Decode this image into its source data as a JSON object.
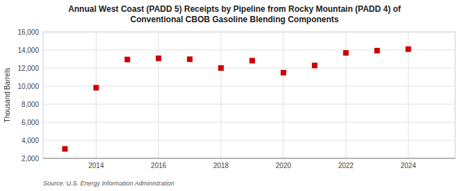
{
  "chart_data": {
    "type": "scatter",
    "title": "Annual West Coast (PADD 5) Receipts by Pipeline from Rocky Mountain (PADD 4) of\nConventional CBOB Gasoline Blending Components",
    "ylabel": "Thousand Barrels",
    "annotations": [
      "Source: U.S. Energy Information Administration"
    ],
    "x": [
      2013,
      2014,
      2015,
      2016,
      2017,
      2018,
      2019,
      2020,
      2021,
      2022,
      2023,
      2024
    ],
    "values": [
      3050,
      9820,
      12950,
      13080,
      12980,
      12010,
      12820,
      11490,
      12290,
      13680,
      13930,
      14100
    ],
    "color": "#cc0000",
    "marker": "square",
    "xlim": [
      2012.3,
      2025.5
    ],
    "xticks": [
      2014,
      2016,
      2018,
      2020,
      2022,
      2024
    ],
    "ylim": [
      2000,
      16000
    ],
    "yticks": [
      {
        "value": 2000,
        "label": "2,000"
      },
      {
        "value": 4000,
        "label": "4,000"
      },
      {
        "value": 6000,
        "label": "6,000"
      },
      {
        "value": 8000,
        "label": "8,000"
      },
      {
        "value": 10000,
        "label": "10,000"
      },
      {
        "value": 12000,
        "label": "12,000"
      },
      {
        "value": 14000,
        "label": "14,000"
      },
      {
        "value": 16000,
        "label": "16,000"
      }
    ],
    "grid": true
  }
}
